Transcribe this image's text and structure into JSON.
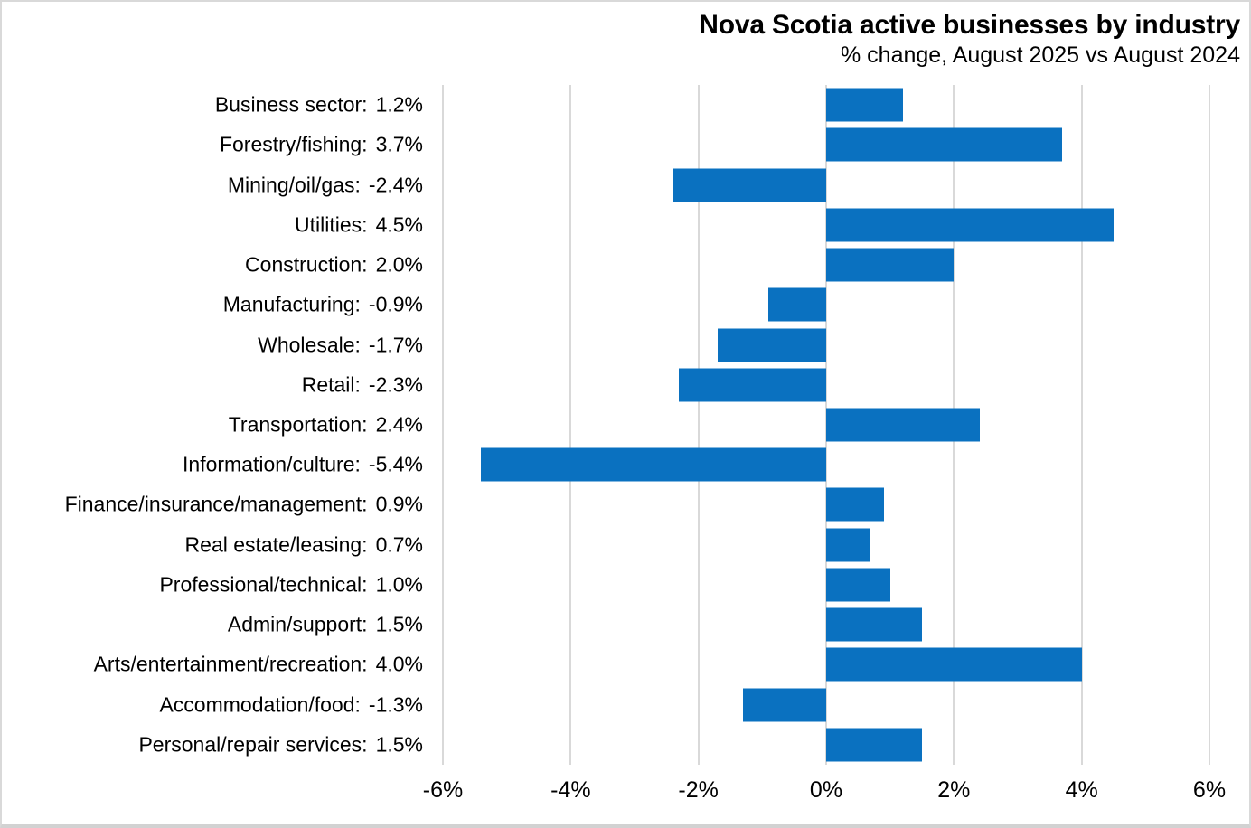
{
  "header": {
    "title": "Nova Scotia active businesses by industry",
    "subtitle": "% change, August 2025 vs August 2024"
  },
  "chart_data": {
    "type": "bar",
    "orientation": "horizontal",
    "title": "Nova Scotia active businesses by industry",
    "subtitle": "% change, August 2025 vs August 2024",
    "categories": [
      "Business sector",
      "Forestry/fishing",
      "Mining/oil/gas",
      "Utilities",
      "Construction",
      "Manufacturing",
      "Wholesale",
      "Retail",
      "Transportation",
      "Information/culture",
      "Finance/insurance/management",
      "Real estate/leasing",
      "Professional/technical",
      "Admin/support",
      "Arts/entertainment/recreation",
      "Accommodation/food",
      "Personal/repair services"
    ],
    "values": [
      1.2,
      3.7,
      -2.4,
      4.5,
      2.0,
      -0.9,
      -1.7,
      -2.3,
      2.4,
      -5.4,
      0.9,
      0.7,
      1.0,
      1.5,
      4.0,
      -1.3,
      1.5
    ],
    "value_labels": [
      "1.2%",
      "3.7%",
      "-2.4%",
      "4.5%",
      "2.0%",
      "-0.9%",
      "-1.7%",
      "-2.3%",
      "2.4%",
      "-5.4%",
      "0.9%",
      "0.7%",
      "1.0%",
      "1.5%",
      "4.0%",
      "-1.3%",
      "1.5%"
    ],
    "xlabel": "",
    "ylabel": "",
    "xlim": [
      -6,
      6
    ],
    "x_ticks": [
      "-6%",
      "-4%",
      "-2%",
      "0%",
      "2%",
      "4%",
      "6%"
    ],
    "x_tick_values": [
      -6,
      -4,
      -2,
      0,
      2,
      4,
      6
    ],
    "grid": "vertical",
    "legend": "none",
    "bar_color": "#0a71c0",
    "gridline_color": "#d9d9d9",
    "text_color": "#000000",
    "background_color": "#ffffff"
  }
}
